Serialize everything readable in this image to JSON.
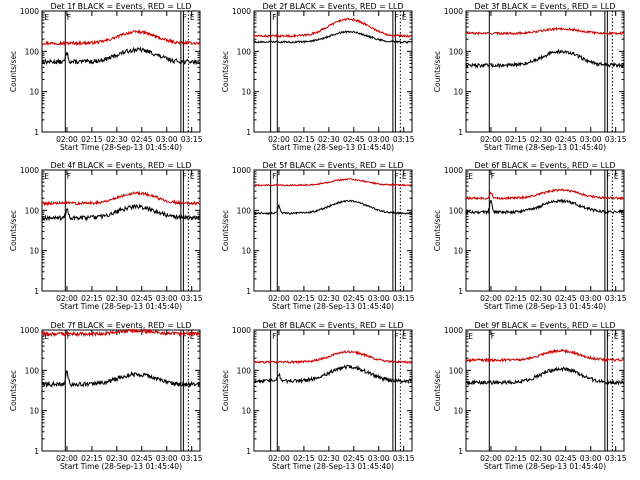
{
  "chart_data": {
    "type": "line",
    "layout": "3x3 grid",
    "x_tick_labels": [
      "02:00",
      "02:15",
      "02:30",
      "02:45",
      "03:00",
      "03:15"
    ],
    "xlabel": "Start Time (28-Sep-13 01:45:40)",
    "ylabel": "Counts/sec",
    "y_scale": "log",
    "ylim": [
      1,
      1000
    ],
    "y_tick_labels": [
      "1",
      "10",
      "100",
      "1000"
    ],
    "x_range_minutes_after_0145": [
      0,
      95
    ],
    "colors": {
      "events": "#000000",
      "lld": "#cc0000"
    },
    "marker_labels": [
      "E",
      "F"
    ],
    "panels": [
      {
        "title": "Det 1f BLACK = Events, RED = LLD",
        "events": {
          "base": 55,
          "hump": 2.0,
          "spike": 90,
          "noise": 0.12
        },
        "lld": {
          "base": 160,
          "hump": 1.9,
          "spike": 0,
          "noise": 0.08
        },
        "solid_lines_min": [
          0,
          14,
          83.5,
          85
        ],
        "dotted_lines_min": [
          88,
          95
        ],
        "labels": [
          {
            "text": "E",
            "x_min": 0.5
          },
          {
            "text": "F",
            "x_min": 14
          },
          {
            "text": "F",
            "x_min": 83.5
          },
          {
            "text": "E",
            "x_min": 88
          }
        ]
      },
      {
        "title": "Det 2f BLACK = Events, RED = LLD",
        "events": {
          "base": 170,
          "hump": 1.8,
          "spike": 0,
          "noise": 0.05
        },
        "lld": {
          "base": 240,
          "hump": 2.6,
          "spike": 0,
          "noise": 0.06
        },
        "solid_lines_min": [
          10,
          14,
          83.5,
          85
        ],
        "dotted_lines_min": [
          88,
          95
        ],
        "labels": [
          {
            "text": "F",
            "x_min": 10
          },
          {
            "text": "F",
            "x_min": 83.5
          },
          {
            "text": "E",
            "x_min": 88
          }
        ]
      },
      {
        "title": "Det 3f BLACK = Events, RED = LLD",
        "events": {
          "base": 45,
          "hump": 2.2,
          "spike": 0,
          "noise": 0.1
        },
        "lld": {
          "base": 280,
          "hump": 1.3,
          "spike": 0,
          "noise": 0.06
        },
        "solid_lines_min": [
          14,
          83.5,
          85
        ],
        "dotted_lines_min": [
          88,
          95
        ],
        "labels": []
      },
      {
        "title": "Det 4f BLACK = Events, RED = LLD",
        "events": {
          "base": 65,
          "hump": 1.9,
          "spike": 110,
          "noise": 0.12
        },
        "lld": {
          "base": 150,
          "hump": 1.8,
          "spike": 0,
          "noise": 0.08
        },
        "solid_lines_min": [
          0,
          14,
          83.5,
          85
        ],
        "dotted_lines_min": [
          88,
          95
        ],
        "labels": [
          {
            "text": "E",
            "x_min": 0.5
          },
          {
            "text": "F",
            "x_min": 14
          },
          {
            "text": "F",
            "x_min": 83.5
          },
          {
            "text": "E",
            "x_min": 88
          }
        ]
      },
      {
        "title": "Det 5f BLACK = Events, RED = LLD",
        "events": {
          "base": 85,
          "hump": 2.0,
          "spike": 130,
          "noise": 0.05
        },
        "lld": {
          "base": 420,
          "hump": 1.4,
          "spike": 0,
          "noise": 0.04
        },
        "solid_lines_min": [
          10,
          14,
          83.5,
          85
        ],
        "dotted_lines_min": [
          88,
          95
        ],
        "labels": [
          {
            "text": "F",
            "x_min": 10
          },
          {
            "text": "F",
            "x_min": 83.5
          },
          {
            "text": "E",
            "x_min": 88
          }
        ]
      },
      {
        "title": "Det 6f BLACK = Events, RED = LLD",
        "events": {
          "base": 90,
          "hump": 1.9,
          "spike": 180,
          "noise": 0.08
        },
        "lld": {
          "base": 200,
          "hump": 1.6,
          "spike": 280,
          "noise": 0.06
        },
        "solid_lines_min": [
          0,
          14,
          83.5,
          85
        ],
        "dotted_lines_min": [
          88,
          95
        ],
        "labels": [
          {
            "text": "E",
            "x_min": 0.5
          },
          {
            "text": "F",
            "x_min": 14
          },
          {
            "text": "F",
            "x_min": 83.5
          },
          {
            "text": "E",
            "x_min": 88
          }
        ]
      },
      {
        "title": "Det 7f BLACK = Events, RED = LLD",
        "events": {
          "base": 45,
          "hump": 1.8,
          "spike": 90,
          "noise": 0.12
        },
        "lld": {
          "base": 800,
          "hump": 1.2,
          "spike": 0,
          "noise": 0.1
        },
        "solid_lines_min": [
          0,
          14,
          83.5,
          85
        ],
        "dotted_lines_min": [
          88,
          95
        ],
        "labels": [
          {
            "text": "E",
            "x_min": 0.5
          },
          {
            "text": "F",
            "x_min": 14
          },
          {
            "text": "F",
            "x_min": 83.5
          },
          {
            "text": "E",
            "x_min": 88
          }
        ]
      },
      {
        "title": "Det 8f BLACK = Events, RED = LLD",
        "events": {
          "base": 55,
          "hump": 2.2,
          "spike": 80,
          "noise": 0.1
        },
        "lld": {
          "base": 160,
          "hump": 1.8,
          "spike": 0,
          "noise": 0.06
        },
        "solid_lines_min": [
          10,
          14,
          83.5,
          85
        ],
        "dotted_lines_min": [
          88,
          95
        ],
        "labels": [
          {
            "text": "F",
            "x_min": 10
          },
          {
            "text": "F",
            "x_min": 83.5
          },
          {
            "text": "E",
            "x_min": 88
          }
        ]
      },
      {
        "title": "Det 9f BLACK = Events, RED = LLD",
        "events": {
          "base": 50,
          "hump": 2.2,
          "spike": 0,
          "noise": 0.1
        },
        "lld": {
          "base": 180,
          "hump": 1.7,
          "spike": 0,
          "noise": 0.07
        },
        "solid_lines_min": [
          14,
          83.5,
          85
        ],
        "dotted_lines_min": [
          88,
          95
        ],
        "labels": [
          {
            "text": "E",
            "x_min": 0.5
          },
          {
            "text": "F",
            "x_min": 14
          },
          {
            "text": "F",
            "x_min": 83.5
          },
          {
            "text": "E",
            "x_min": 88
          }
        ]
      }
    ]
  }
}
